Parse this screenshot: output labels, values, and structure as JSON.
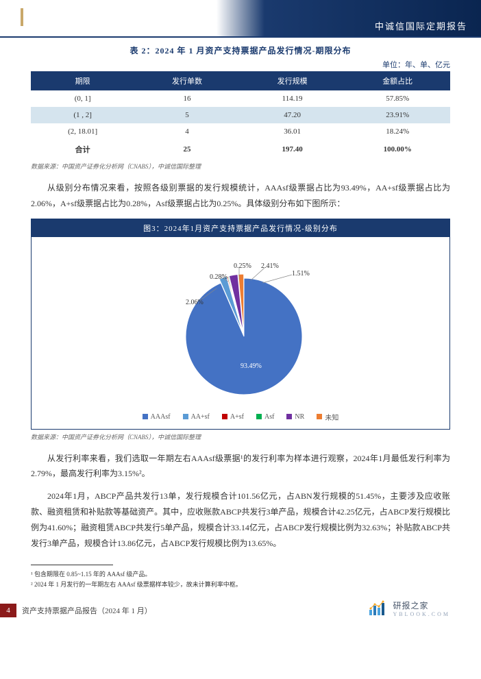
{
  "header": {
    "title": "中诚信国际定期报告"
  },
  "table2": {
    "title": "表 2：2024 年 1 月资产支持票据产品发行情况-期限分布",
    "unit": "单位：年、单、亿元",
    "columns": [
      "期限",
      "发行单数",
      "发行规模",
      "金额占比"
    ],
    "rows": [
      [
        "(0, 1]",
        "16",
        "114.19",
        "57.85%"
      ],
      [
        "(1 , 2]",
        "5",
        "47.20",
        "23.91%"
      ],
      [
        "(2, 18.01]",
        "4",
        "36.01",
        "18.24%"
      ],
      [
        "合计",
        "25",
        "197.40",
        "100.00%"
      ]
    ],
    "source": "数据来源：中国资产证券化分析网（CNABS），中诚信国际整理"
  },
  "paragraph1": "从级别分布情况来看，按照各级别票据的发行规模统计，AAAsf级票据占比为93.49%，AA+sf级票据占比为2.06%，A+sf级票据占比为0.28%，Asf级票据占比为0.25%。具体级别分布如下图所示：",
  "chart": {
    "title": "图3：2024年1月资产支持票据产品发行情况-级别分布",
    "type": "pie",
    "slices": [
      {
        "label": "AAAsf",
        "value": 93.49,
        "color": "#4472c4",
        "text": "93.49%"
      },
      {
        "label": "AA+sf",
        "value": 2.06,
        "color": "#5b9bd5",
        "text": "2.06%"
      },
      {
        "label": "A+sf",
        "value": 0.28,
        "color": "#c00000",
        "text": "0.28%"
      },
      {
        "label": "Asf",
        "value": 0.25,
        "color": "#00b050",
        "text": "0.25%"
      },
      {
        "label": "NR",
        "value": 2.41,
        "color": "#7030a0",
        "text": "2.41%"
      },
      {
        "label": "未知",
        "value": 1.51,
        "color": "#ed7d31",
        "text": "1.51%"
      }
    ],
    "legend": [
      "AAAsf",
      "AA+sf",
      "A+sf",
      "Asf",
      "NR",
      "未知"
    ],
    "legend_colors": [
      "#4472c4",
      "#5b9bd5",
      "#c00000",
      "#00b050",
      "#7030a0",
      "#ed7d31"
    ],
    "source": "数据来源：中国资产证券化分析网（CNABS），中诚信国际整理"
  },
  "paragraph2": "从发行利率来看，我们选取一年期左右AAAsf级票据¹的发行利率为样本进行观察，2024年1月最低发行利率为2.79%，最高发行利率为3.15%²。",
  "paragraph3": "2024年1月，ABCP产品共发行13单，发行规模合计101.56亿元，占ABN发行规模的51.45%，主要涉及应收账款、融资租赁和补贴款等基础资产。其中，应收账款ABCP共发行3单产品，规模合计42.25亿元，占ABCP发行规模比例为41.60%；融资租赁ABCP共发行5单产品，规模合计33.14亿元，占ABCP发行规模比例为32.63%；补贴款ABCP共发行3单产品，规模合计13.86亿元，占ABCP发行规模比例为13.65%。",
  "footnotes": [
    "¹ 包含期限在 0.85~1.15 年的 AAAsf 级产品。",
    "² 2024 年 1 月发行的一年期左右 AAAsf 级票据样本较少，故未计算利率中枢。"
  ],
  "footer": {
    "page": "4",
    "text": "资产支持票据产品报告（2024 年 1 月）",
    "logo_main": "研报之家",
    "logo_sub": "YBLOOK.COM"
  }
}
